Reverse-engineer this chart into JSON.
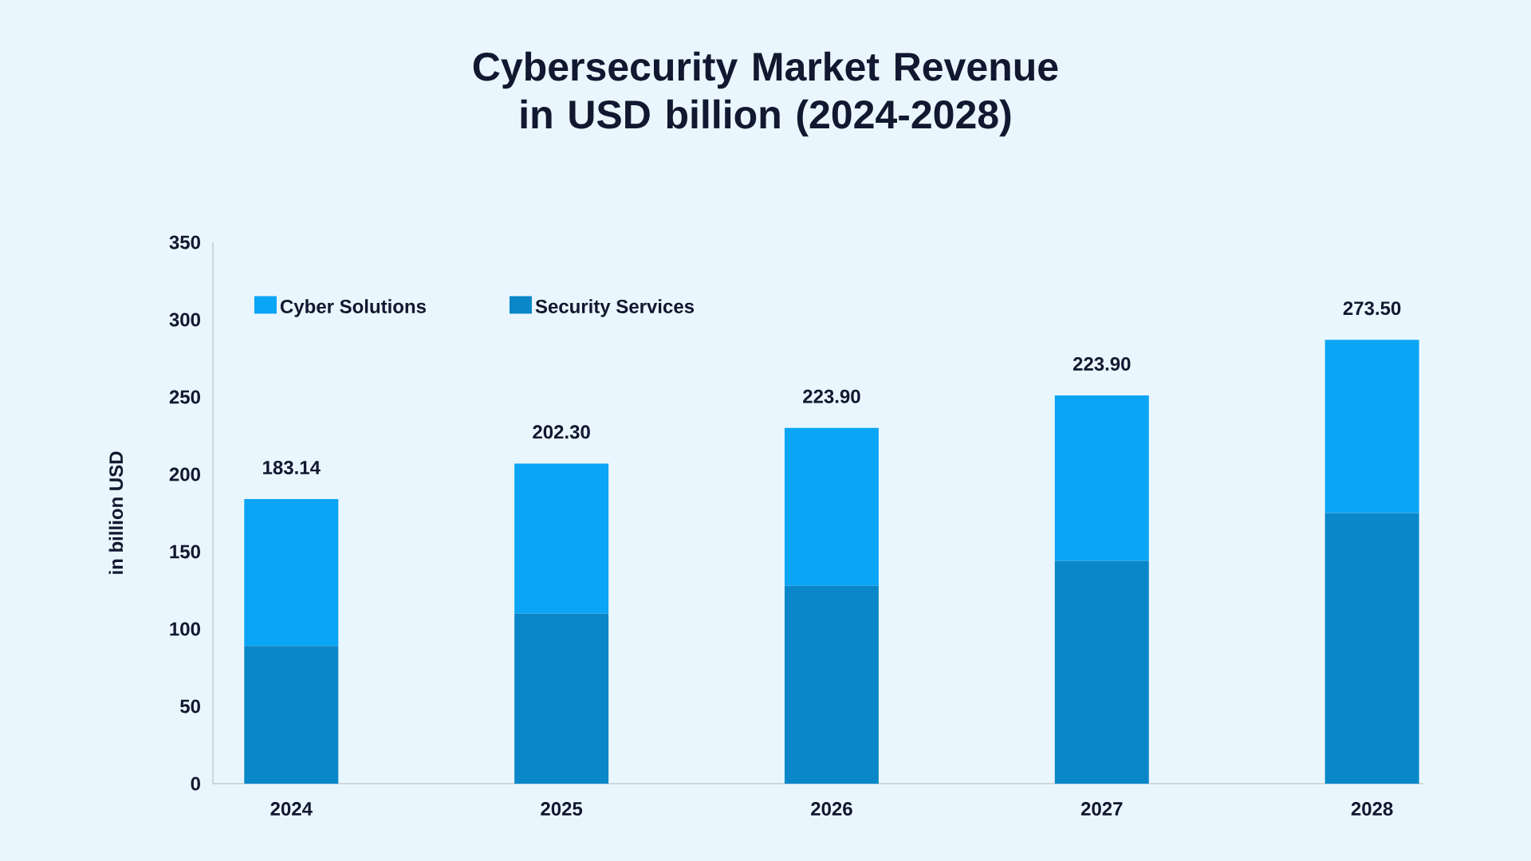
{
  "chart_data": {
    "type": "bar",
    "title": "Cybersecurity Market Revenue in USD billion (2024-2028)",
    "ylabel": "in billion USD",
    "categories": [
      "2024",
      "2025",
      "2026",
      "2027",
      "2028"
    ],
    "series": [
      {
        "name": "Security Services",
        "color": "#0a87c9",
        "values": [
          89,
          110,
          128,
          144,
          175
        ]
      },
      {
        "name": "Cyber Solutions",
        "color": "#0aa5f5",
        "values": [
          95,
          97,
          102,
          107,
          112
        ]
      }
    ],
    "stacked": true,
    "annotations": [
      {
        "text": "183.14",
        "x": "2024",
        "y": 184
      },
      {
        "text": "202.30",
        "x": "2025",
        "y": 207
      },
      {
        "text": "223.90",
        "x": "2026",
        "y": 230
      },
      {
        "text": "223.90",
        "x": "2027",
        "y": 251
      },
      {
        "text": "273.50",
        "x": "2028",
        "y": 287
      }
    ],
    "ylim": [
      0,
      350
    ],
    "yticks": [
      0,
      50,
      100,
      150,
      200,
      250,
      300,
      350
    ],
    "legend": "top left"
  }
}
